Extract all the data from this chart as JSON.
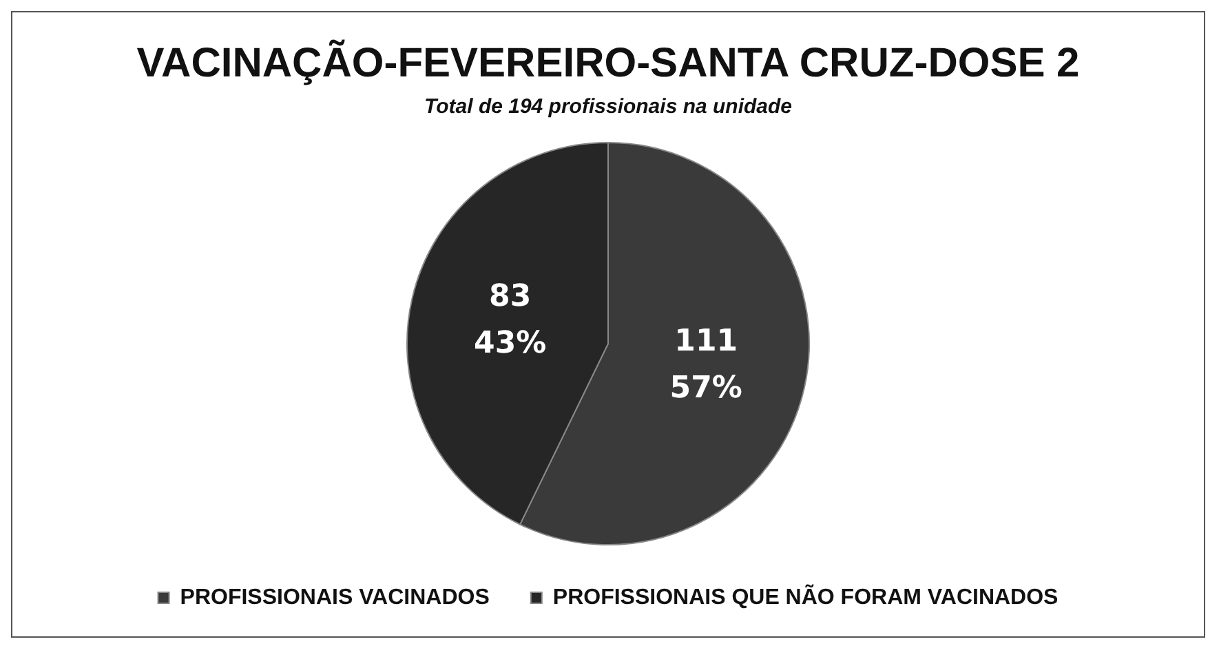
{
  "chart_data": {
    "type": "pie",
    "title": "VACINAÇÃO-FEVEREIRO-SANTA CRUZ-DOSE 2",
    "subtitle": "Total de 194 profissionais na unidade",
    "categories": [
      "PROFISSIONAIS VACINADOS",
      "PROFISSIONAIS QUE NÃO FORAM VACINADOS"
    ],
    "values": [
      111,
      83
    ],
    "colors": [
      "#3a3a3a",
      "#262626"
    ],
    "value_labels": [
      "111\n57%",
      "83\n43%"
    ],
    "legend": "bottom"
  }
}
